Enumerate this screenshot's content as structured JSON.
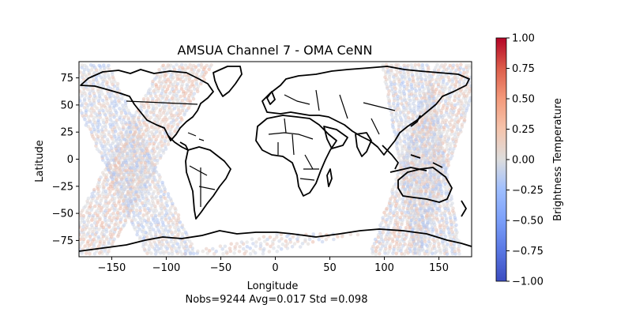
{
  "chart_data": {
    "type": "scatter",
    "title": "AMSUA Channel 7 - OMA CeNN",
    "xlabel": "Longitude",
    "ylabel": "Latitude",
    "caption": "Nobs=9244 Avg=0.017 Std =0.098",
    "xlim": [
      -180,
      180
    ],
    "ylim": [
      -90,
      90
    ],
    "xticks": [
      -150,
      -100,
      -50,
      0,
      50,
      100,
      150
    ],
    "yticks": [
      -75,
      -50,
      -25,
      0,
      25,
      50,
      75
    ],
    "grid": false,
    "colorbar": {
      "label": "Brightness Temperature",
      "vmin": -1.0,
      "vmax": 1.0,
      "colormap": "coolwarm",
      "ticks": [
        "-1.00",
        "-0.75",
        "-0.50",
        "-0.25",
        "0.00",
        "0.25",
        "0.50",
        "0.75",
        "1.00"
      ]
    },
    "series": [
      {
        "type": "swath-band",
        "center_lon_at_lat_min": -175,
        "center_lon_at_lat_max": -80,
        "lat_range": [
          -87,
          87
        ],
        "width_deg": 48,
        "mean_value": 0.05
      },
      {
        "type": "swath-band",
        "center_lon_at_lat_min": -95,
        "center_lon_at_lat_max": -175,
        "lat_range": [
          -87,
          87
        ],
        "width_deg": 48,
        "mean_value": -0.05
      },
      {
        "type": "swath-band",
        "center_lon_at_lat_min": 110,
        "center_lon_at_lat_max": 170,
        "lat_range": [
          -87,
          87
        ],
        "width_deg": 46,
        "mean_value": 0.02
      },
      {
        "type": "swath-band",
        "center_lon_at_lat_min": 150,
        "center_lon_at_lat_max": 120,
        "lat_range": [
          -87,
          87
        ],
        "width_deg": 44,
        "mean_value": -0.04
      },
      {
        "type": "swath-band",
        "center_lon_at_lat_min": -45,
        "center_lon_at_lat_max": 45,
        "lat_range": [
          -87,
          -68
        ],
        "width_deg": 80,
        "mean_value": 0.0
      }
    ]
  },
  "colors": {
    "cmap_low": "#3b4cc0",
    "cmap_mid": "#dddddd",
    "cmap_high": "#b40426",
    "coastline": "#000000"
  }
}
